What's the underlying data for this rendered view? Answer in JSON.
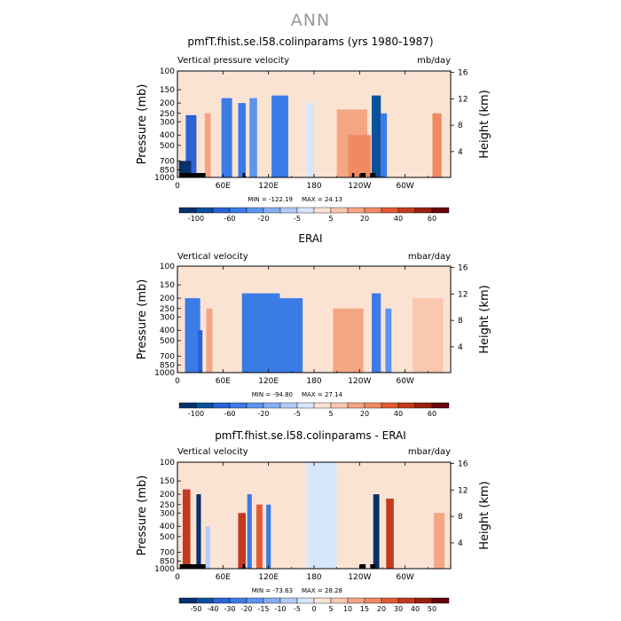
{
  "figure_title": "ANN",
  "colors": {
    "scale_a": [
      "#08306b",
      "#08519c",
      "#2c62d4",
      "#3b7be6",
      "#5d94ee",
      "#86aff3",
      "#b2ccf6",
      "#d6e6fb",
      "#fbe3d4",
      "#fac8ae",
      "#f4a582",
      "#ef8a62",
      "#e35a33",
      "#c43a1c",
      "#962210",
      "#67000d"
    ],
    "scale_b": [
      "#08306b",
      "#08519c",
      "#2c62d4",
      "#3b7be6",
      "#5d94ee",
      "#86aff3",
      "#b2ccf6",
      "#d6e6fb",
      "#fbe3d4",
      "#fac8ae",
      "#f4a582",
      "#ef8a62",
      "#e35a33",
      "#c43a1c",
      "#962210",
      "#67000d"
    ],
    "missing": "#000000"
  },
  "chart_data": [
    {
      "type": "heatmap",
      "title": "pmfT.fhist.se.l58.colinparams (yrs 1980-1987)",
      "left_string": "Vertical pressure velocity",
      "right_string": "mb/day",
      "ylabel": "Pressure (mb)",
      "ylabel_right": "Height (km)",
      "x_ticks": [
        "0",
        "60E",
        "120E",
        "180",
        "120W",
        "60W"
      ],
      "x_tick_values": [
        0,
        60,
        120,
        180,
        240,
        300
      ],
      "xlim": [
        0,
        360
      ],
      "y_ticks": [
        "100",
        "150",
        "200",
        "250",
        "300",
        "400",
        "500",
        "700",
        "850",
        "1000"
      ],
      "y_tick_values": [
        100,
        150,
        200,
        250,
        300,
        400,
        500,
        700,
        850,
        1000
      ],
      "ylim": [
        100,
        1000
      ],
      "y_scale": "log",
      "height_ticks": [
        "4",
        "8",
        "12",
        "16"
      ],
      "height_tick_values": [
        4,
        8,
        12,
        16
      ],
      "min_label": "MIN = -122.19",
      "max_label": "MAX =  24.13",
      "colorbar_labels": [
        "-100",
        "-60",
        "-20",
        "-5",
        "5",
        "20",
        "40",
        "60"
      ],
      "colorbar_levels": [
        -120,
        -100,
        -80,
        -60,
        -40,
        -20,
        -10,
        -5,
        0,
        5,
        10,
        20,
        30,
        40,
        50,
        60
      ],
      "masked_ranges": [
        [
          3,
          37
        ],
        [
          86,
          89
        ],
        [
          230,
          233
        ],
        [
          241,
          248
        ],
        [
          254,
          261
        ]
      ],
      "features": [
        {
          "lon": 18,
          "width": 14,
          "pmin": 260,
          "value": -80
        },
        {
          "lon": 10,
          "width": 16,
          "pmin": 700,
          "value": -110
        },
        {
          "lon": 40,
          "width": 8,
          "pmin": 250,
          "value": 15
        },
        {
          "lon": 65,
          "width": 14,
          "pmin": 180,
          "value": -50
        },
        {
          "lon": 85,
          "width": 10,
          "pmin": 200,
          "value": -60
        },
        {
          "lon": 100,
          "width": 10,
          "pmin": 180,
          "value": -35
        },
        {
          "lon": 135,
          "width": 22,
          "pmin": 170,
          "value": -45
        },
        {
          "lon": 175,
          "width": 10,
          "pmin": 200,
          "value": -5
        },
        {
          "lon": 230,
          "width": 40,
          "pmin": 230,
          "value": 12
        },
        {
          "lon": 240,
          "width": 30,
          "pmin": 400,
          "value": 20
        },
        {
          "lon": 262,
          "width": 12,
          "pmin": 170,
          "value": -90
        },
        {
          "lon": 272,
          "width": 8,
          "pmin": 250,
          "value": -60
        },
        {
          "lon": 342,
          "width": 12,
          "pmin": 250,
          "value": 20
        }
      ]
    },
    {
      "type": "heatmap",
      "title": "ERAI",
      "left_string": "Vertical velocity",
      "right_string": "mbar/day",
      "ylabel": "Pressure (mb)",
      "ylabel_right": "Height (km)",
      "x_ticks": [
        "0",
        "60E",
        "120E",
        "180",
        "120W",
        "60W"
      ],
      "x_tick_values": [
        0,
        60,
        120,
        180,
        240,
        300
      ],
      "xlim": [
        0,
        360
      ],
      "y_ticks": [
        "100",
        "150",
        "200",
        "250",
        "300",
        "400",
        "500",
        "700",
        "850",
        "1000"
      ],
      "y_tick_values": [
        100,
        150,
        200,
        250,
        300,
        400,
        500,
        700,
        850,
        1000
      ],
      "ylim": [
        100,
        1000
      ],
      "y_scale": "log",
      "height_ticks": [
        "4",
        "8",
        "12",
        "16"
      ],
      "height_tick_values": [
        4,
        8,
        12,
        16
      ],
      "min_label": "MIN = -94.80",
      "max_label": "MAX =  27.14",
      "colorbar_labels": [
        "-100",
        "-60",
        "-20",
        "-5",
        "5",
        "20",
        "40",
        "60"
      ],
      "colorbar_levels": [
        -120,
        -100,
        -80,
        -60,
        -40,
        -20,
        -10,
        -5,
        0,
        5,
        10,
        20,
        30,
        40,
        50,
        60
      ],
      "masked_ranges": [],
      "features": [
        {
          "lon": 20,
          "width": 20,
          "pmin": 200,
          "value": -50
        },
        {
          "lon": 30,
          "width": 6,
          "pmin": 400,
          "value": -70
        },
        {
          "lon": 42,
          "width": 8,
          "pmin": 250,
          "value": 12
        },
        {
          "lon": 110,
          "width": 50,
          "pmin": 180,
          "value": -50
        },
        {
          "lon": 150,
          "width": 30,
          "pmin": 200,
          "value": -45
        },
        {
          "lon": 225,
          "width": 40,
          "pmin": 250,
          "value": 10
        },
        {
          "lon": 262,
          "width": 12,
          "pmin": 180,
          "value": -60
        },
        {
          "lon": 278,
          "width": 8,
          "pmin": 250,
          "value": -40
        },
        {
          "lon": 330,
          "width": 40,
          "pmin": 200,
          "value": 6
        }
      ]
    },
    {
      "type": "heatmap",
      "title": "pmfT.fhist.se.l58.colinparams - ERAI",
      "left_string": "Vertical velocity",
      "right_string": "mbar/day",
      "ylabel": "Pressure (mb)",
      "ylabel_right": "Height (km)",
      "x_ticks": [
        "0",
        "60E",
        "120E",
        "180",
        "120W",
        "60W"
      ],
      "x_tick_values": [
        0,
        60,
        120,
        180,
        240,
        300
      ],
      "xlim": [
        0,
        360
      ],
      "y_ticks": [
        "100",
        "150",
        "200",
        "250",
        "300",
        "400",
        "500",
        "700",
        "850",
        "1000"
      ],
      "y_tick_values": [
        100,
        150,
        200,
        250,
        300,
        400,
        500,
        700,
        850,
        1000
      ],
      "ylim": [
        100,
        1000
      ],
      "y_scale": "log",
      "height_ticks": [
        "4",
        "8",
        "12",
        "16"
      ],
      "height_tick_values": [
        4,
        8,
        12,
        16
      ],
      "min_label": "MIN = -73.63",
      "max_label": "MAX =  28.28",
      "colorbar_labels": [
        "-50",
        "-40",
        "-30",
        "-20",
        "-15",
        "-10",
        "-5",
        "0",
        "5",
        "10",
        "15",
        "20",
        "30",
        "40",
        "50"
      ],
      "colorbar_levels": [
        -60,
        -50,
        -40,
        -30,
        -20,
        -15,
        -10,
        -5,
        0,
        5,
        10,
        15,
        20,
        30,
        40,
        50
      ],
      "masked_ranges": [
        [
          3,
          37
        ],
        [
          86,
          89
        ],
        [
          240,
          248
        ],
        [
          254,
          261
        ]
      ],
      "features": [
        {
          "lon": 12,
          "width": 10,
          "pmin": 180,
          "value": 30
        },
        {
          "lon": 28,
          "width": 6,
          "pmin": 200,
          "value": -60
        },
        {
          "lon": 40,
          "width": 6,
          "pmin": 400,
          "value": -10
        },
        {
          "lon": 85,
          "width": 10,
          "pmin": 300,
          "value": 30
        },
        {
          "lon": 95,
          "width": 6,
          "pmin": 200,
          "value": -30
        },
        {
          "lon": 108,
          "width": 8,
          "pmin": 250,
          "value": 20
        },
        {
          "lon": 120,
          "width": 6,
          "pmin": 250,
          "value": -25
        },
        {
          "lon": 190,
          "width": 40,
          "pmin": 100,
          "value": -4
        },
        {
          "lon": 262,
          "width": 8,
          "pmin": 200,
          "value": -55
        },
        {
          "lon": 280,
          "width": 10,
          "pmin": 220,
          "value": 30
        },
        {
          "lon": 345,
          "width": 14,
          "pmin": 300,
          "value": 10
        }
      ]
    }
  ]
}
